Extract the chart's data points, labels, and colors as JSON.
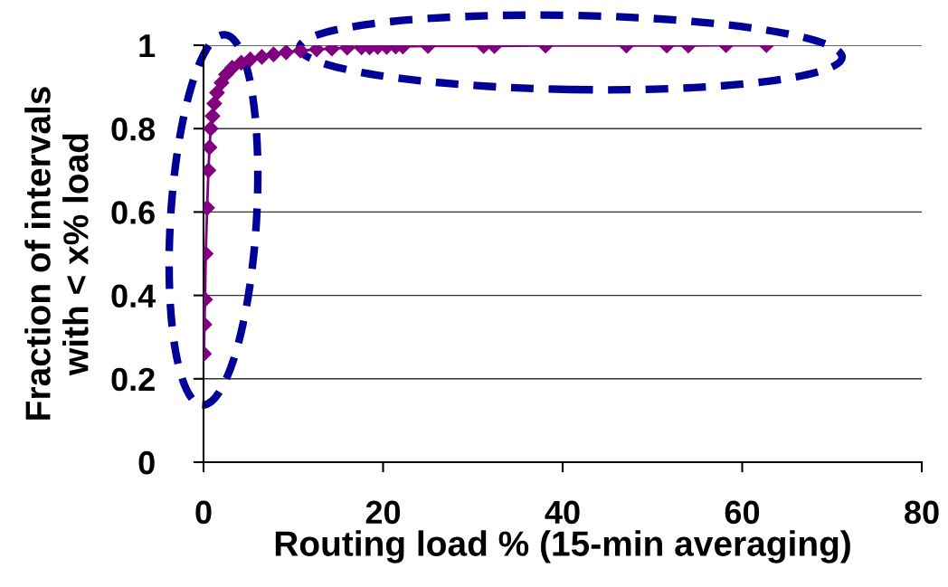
{
  "chart_data": {
    "type": "line",
    "xlabel": "Routing load % (15-min averaging)",
    "ylabel": "Fraction of intervals\nwith < x% load",
    "series": [
      {
        "color": "#800080",
        "x": [
          0.05,
          0.1,
          0.17,
          0.25,
          0.4,
          0.55,
          0.67,
          0.8,
          1.0,
          1.2,
          1.5,
          2.0,
          2.5,
          3.2,
          4.2,
          5.2,
          6.5,
          7.8,
          9.2,
          10.8,
          12.6,
          14.3,
          16,
          17.6,
          18.5,
          19.4,
          20.4,
          21.4,
          22.2,
          25.0,
          31.2,
          32.4,
          38.1,
          47.1,
          51.6,
          54.0,
          58.2,
          62.7
        ],
        "values": [
          0.26,
          0.33,
          0.39,
          0.5,
          0.61,
          0.7,
          0.755,
          0.8,
          0.83,
          0.86,
          0.886,
          0.91,
          0.93,
          0.946,
          0.958,
          0.966,
          0.972,
          0.978,
          0.983,
          0.987,
          0.99,
          0.992,
          0.994,
          0.995,
          0.995,
          0.996,
          0.996,
          0.997,
          0.997,
          0.998,
          0.998,
          0.998,
          0.999,
          0.999,
          0.999,
          0.999,
          1.0,
          1.0
        ]
      }
    ],
    "xlim": [
      0,
      80
    ],
    "xticks": [
      0,
      20,
      40,
      60,
      80
    ],
    "ylim": [
      0,
      1
    ],
    "yticks": [
      0,
      0.2,
      0.4,
      0.6,
      0.8,
      1
    ],
    "grid": "y",
    "marker": "diamond",
    "line_style": "solid"
  }
}
